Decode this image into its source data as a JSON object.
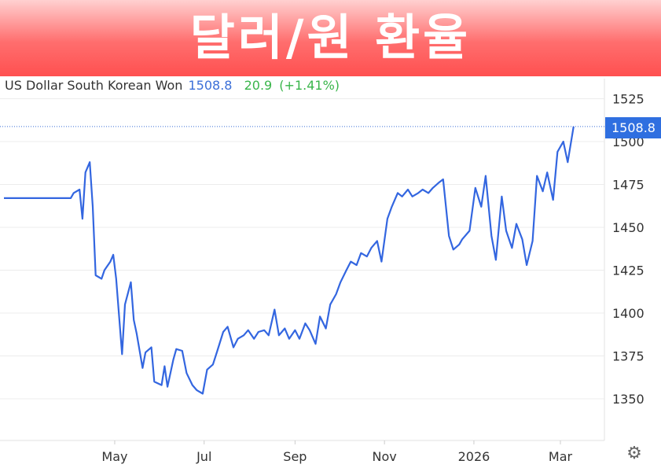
{
  "banner": {
    "title": "달러/원 환율"
  },
  "header": {
    "instrument": "US Dollar South Korean Won",
    "price": "1508.8",
    "change": "20.9",
    "change_pct": "(+1.41%)"
  },
  "colors": {
    "line": "#3366e0",
    "up": "#39b54a",
    "badge": "#2f6fe0",
    "banner": "#ff5a5a"
  },
  "icons": {
    "settings": "gear-icon"
  },
  "chart_data": {
    "type": "line",
    "title": "",
    "xlabel": "",
    "ylabel": "",
    "ylim": [
      1325,
      1535
    ],
    "y_ticks": [
      1525,
      1500,
      1475,
      1450,
      1425,
      1400,
      1375,
      1350
    ],
    "x_ticks": [
      "May",
      "Jul",
      "Sep",
      "Nov",
      "2026",
      "Mar"
    ],
    "current_value": 1508.8,
    "current_label": "1508.8",
    "series": [
      {
        "x": [
          "2025-03-28",
          "2025-04-01",
          "2025-04-03",
          "2025-04-07",
          "2025-04-09",
          "2025-04-11",
          "2025-04-14",
          "2025-04-16",
          "2025-04-18",
          "2025-04-22",
          "2025-04-24",
          "2025-04-28",
          "2025-04-30",
          "2025-05-02",
          "2025-05-06",
          "2025-05-08",
          "2025-05-12",
          "2025-05-14",
          "2025-05-16",
          "2025-05-20",
          "2025-05-22",
          "2025-05-26",
          "2025-05-28",
          "2025-06-02",
          "2025-06-04",
          "2025-06-06",
          "2025-06-10",
          "2025-06-12",
          "2025-06-16",
          "2025-06-19",
          "2025-06-23",
          "2025-06-26",
          "2025-06-30",
          "2025-07-03",
          "2025-07-07",
          "2025-07-10",
          "2025-07-14",
          "2025-07-17",
          "2025-07-21",
          "2025-07-24",
          "2025-07-28",
          "2025-07-31",
          "2025-08-04",
          "2025-08-07",
          "2025-08-11",
          "2025-08-14",
          "2025-08-18",
          "2025-08-21",
          "2025-08-25",
          "2025-08-28",
          "2025-09-01",
          "2025-09-04",
          "2025-09-08",
          "2025-09-11",
          "2025-09-15",
          "2025-09-18",
          "2025-09-22",
          "2025-09-25",
          "2025-09-29",
          "2025-10-02",
          "2025-10-06",
          "2025-10-09",
          "2025-10-13",
          "2025-10-16",
          "2025-10-20",
          "2025-10-23",
          "2025-10-27",
          "2025-10-30",
          "2025-11-03",
          "2025-11-06",
          "2025-11-10",
          "2025-11-13",
          "2025-11-17",
          "2025-11-20",
          "2025-11-24",
          "2025-11-27",
          "2025-12-01",
          "2025-12-04",
          "2025-12-08",
          "2025-12-11",
          "2025-12-15",
          "2025-12-18",
          "2025-12-22",
          "2025-12-24",
          "2025-12-29",
          "2026-01-02",
          "2026-01-06",
          "2026-01-09",
          "2026-01-13",
          "2026-01-16",
          "2026-01-20",
          "2026-01-23",
          "2026-01-27",
          "2026-01-30",
          "2026-02-03",
          "2026-02-06",
          "2026-02-10",
          "2026-02-13",
          "2026-02-17",
          "2026-02-20",
          "2026-02-24",
          "2026-02-27",
          "2026-03-03",
          "2026-03-06",
          "2026-03-10"
        ],
        "values": [
          1467,
          1467,
          1470,
          1472,
          1455,
          1482,
          1488,
          1462,
          1422,
          1420,
          1425,
          1430,
          1434,
          1420,
          1376,
          1405,
          1418,
          1396,
          1388,
          1368,
          1377,
          1380,
          1360,
          1358,
          1369,
          1357,
          1373,
          1379,
          1378,
          1365,
          1358,
          1355,
          1353,
          1367,
          1370,
          1378,
          1389,
          1392,
          1380,
          1385,
          1387,
          1390,
          1385,
          1389,
          1390,
          1387,
          1402,
          1387,
          1391,
          1385,
          1390,
          1385,
          1394,
          1390,
          1382,
          1398,
          1391,
          1405,
          1411,
          1418,
          1425,
          1430,
          1428,
          1435,
          1433,
          1438,
          1442,
          1430,
          1455,
          1462,
          1470,
          1468,
          1472,
          1468,
          1470,
          1472,
          1470,
          1473,
          1476,
          1478,
          1445,
          1437,
          1440,
          1443,
          1448,
          1473,
          1462,
          1480,
          1445,
          1431,
          1468,
          1448,
          1438,
          1452,
          1443,
          1428,
          1442,
          1480,
          1471,
          1482,
          1466,
          1494,
          1500,
          1488,
          1508.8
        ]
      }
    ]
  }
}
